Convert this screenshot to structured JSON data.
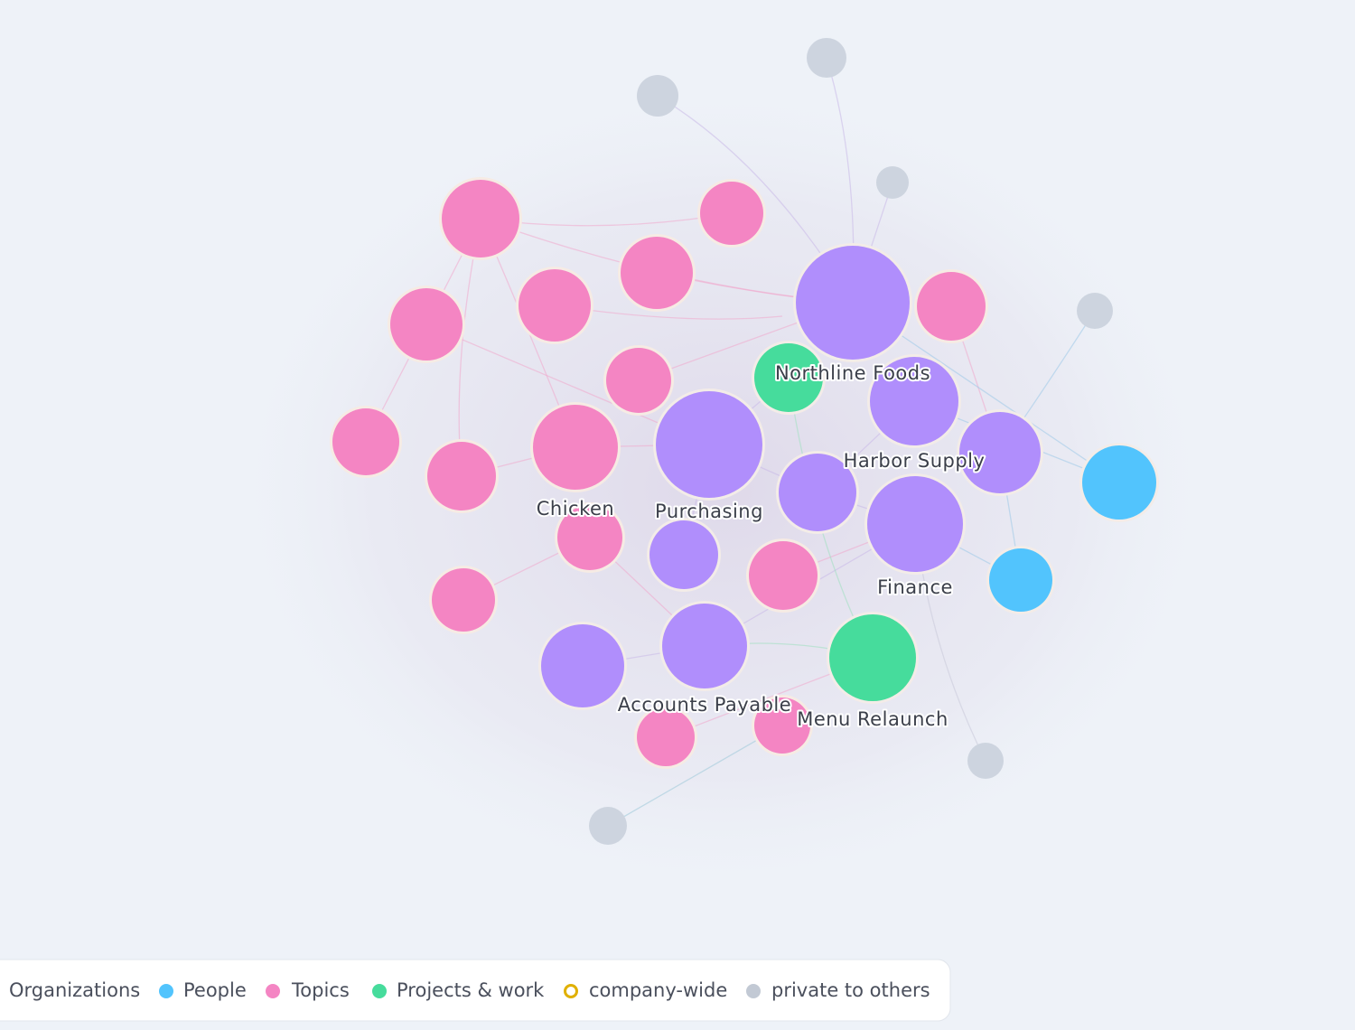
{
  "nodes": [
    {
      "label": "Northline Foods"
    },
    {
      "label": "Harbor Supply"
    },
    {
      "label": "Chicken"
    },
    {
      "label": "Purchasing"
    },
    {
      "label": "Finance"
    },
    {
      "label": "Accounts Payable"
    },
    {
      "label": "Menu Relaunch"
    }
  ],
  "legend": [
    {
      "label": "Organizations"
    },
    {
      "label": "People"
    },
    {
      "label": "Topics"
    },
    {
      "label": "Projects & work"
    },
    {
      "label": "company-wide"
    },
    {
      "label": "private to others"
    }
  ]
}
